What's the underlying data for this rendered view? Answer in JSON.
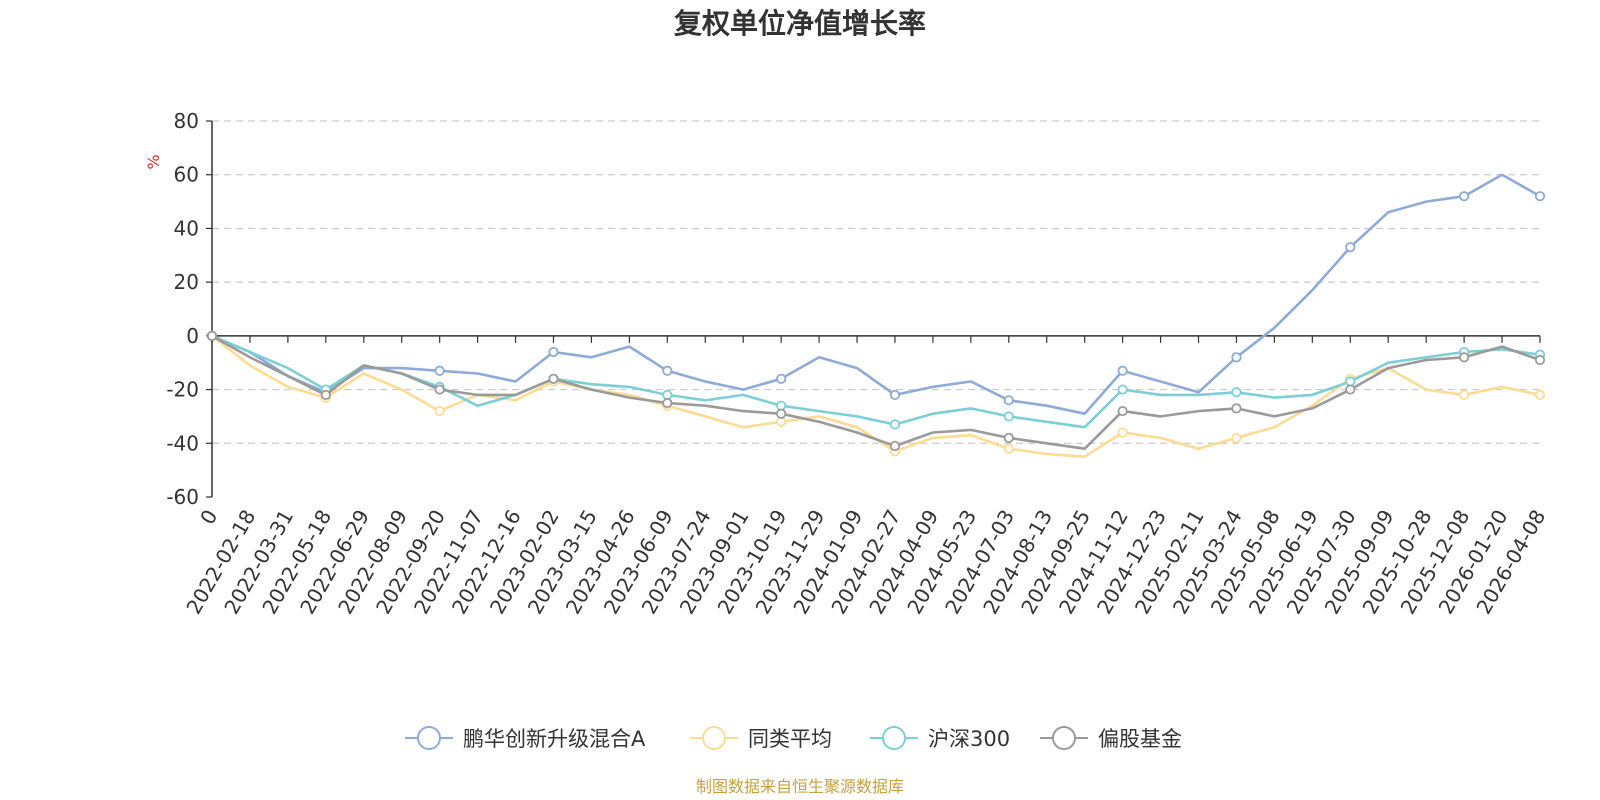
{
  "colors": {
    "background": "#ffffff",
    "axis": "#333333",
    "grid": "#cccccc",
    "unit": "#e0302a",
    "source": "#c8a040"
  },
  "source_note": "制图数据来自恒生聚源数据库",
  "chart_data": {
    "type": "line",
    "title": "复权单位净值增长率",
    "ylabel": "%",
    "ylim": [
      -60,
      80
    ],
    "yticks": [
      80,
      60,
      40,
      20,
      0,
      -20,
      -40,
      -60
    ],
    "grid": true,
    "legend_position": "bottom-center",
    "x": [
      "0",
      "2022-02-18",
      "2022-03-31",
      "2022-05-18",
      "2022-06-29",
      "2022-08-09",
      "2022-09-20",
      "2022-11-07",
      "2022-12-16",
      "2023-02-02",
      "2023-03-15",
      "2023-04-26",
      "2023-06-09",
      "2023-07-24",
      "2023-09-01",
      "2023-10-19",
      "2023-11-29",
      "2024-01-09",
      "2024-02-27",
      "2024-04-09",
      "2024-05-23",
      "2024-07-03",
      "2024-08-13",
      "2024-09-25",
      "2024-11-12",
      "2024-12-23",
      "2025-02-11",
      "2025-03-24",
      "2025-05-08",
      "2025-06-19",
      "2025-07-30",
      "2025-09-09",
      "2025-10-28",
      "2025-12-08",
      "2026-01-20",
      "2026-04-08"
    ],
    "series": [
      {
        "name": "鹏华创新升级混合A",
        "color": "#8eaad8",
        "values": [
          0,
          -6,
          -15,
          -21,
          -12,
          -12,
          -13,
          -14,
          -17,
          -6,
          -8,
          -4,
          -13,
          -17,
          -20,
          -16,
          -8,
          -12,
          -22,
          -19,
          -17,
          -24,
          -26,
          -29,
          -13,
          -17,
          -21,
          -8,
          3,
          17,
          33,
          46,
          50,
          52,
          60,
          52
        ]
      },
      {
        "name": "同类平均",
        "color": "#fddb92",
        "values": [
          0,
          -11,
          -19,
          -23,
          -14,
          -20,
          -28,
          -22,
          -24,
          -17,
          -20,
          -22,
          -26,
          -30,
          -34,
          -32,
          -30,
          -34,
          -43,
          -38,
          -37,
          -42,
          -44,
          -45,
          -36,
          -38,
          -42,
          -38,
          -34,
          -26,
          -16,
          -12,
          -20,
          -22,
          -19,
          -22
        ]
      },
      {
        "name": "沪深300",
        "color": "#7ccfd6",
        "values": [
          0,
          -6,
          -12,
          -20,
          -11,
          -14,
          -19,
          -26,
          -22,
          -16,
          -18,
          -19,
          -22,
          -24,
          -22,
          -26,
          -28,
          -30,
          -33,
          -29,
          -27,
          -30,
          -32,
          -34,
          -20,
          -22,
          -22,
          -21,
          -23,
          -22,
          -17,
          -10,
          -8,
          -6,
          -5,
          -7
        ]
      },
      {
        "name": "偏股基金",
        "color": "#9a9a9a",
        "values": [
          0,
          -8,
          -15,
          -22,
          -11,
          -14,
          -20,
          -22,
          -22,
          -16,
          -20,
          -23,
          -25,
          -26,
          -28,
          -29,
          -32,
          -36,
          -41,
          -36,
          -35,
          -38,
          -40,
          -42,
          -28,
          -30,
          -28,
          -27,
          -30,
          -27,
          -20,
          -12,
          -9,
          -8,
          -4,
          -9
        ]
      }
    ]
  }
}
